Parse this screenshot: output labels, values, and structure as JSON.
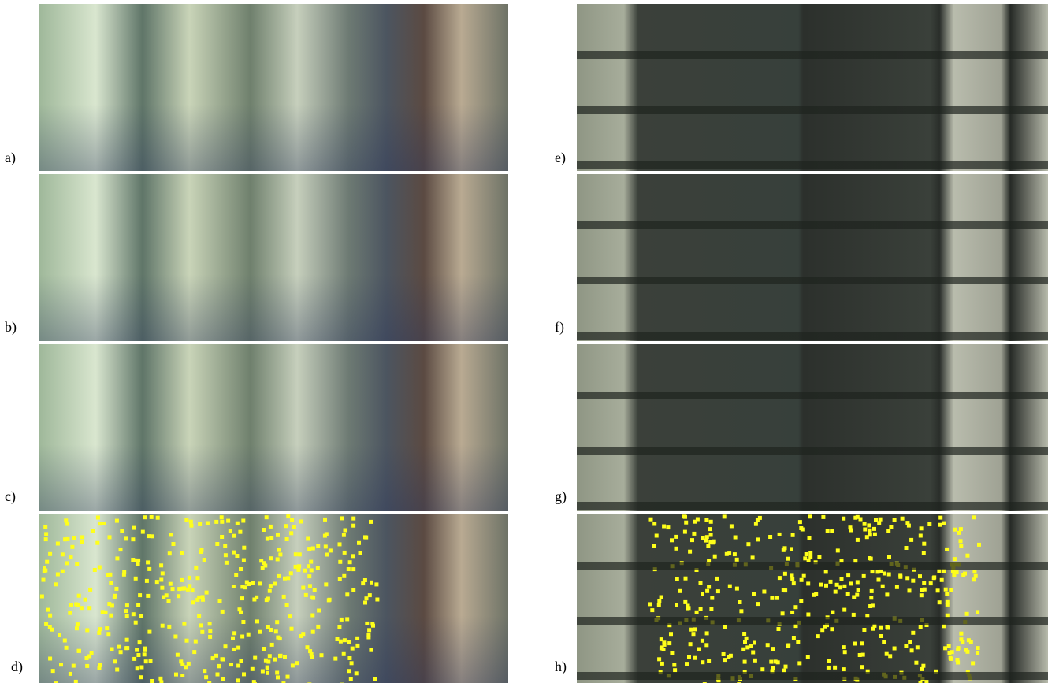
{
  "panels": [
    {
      "label": "a)"
    },
    {
      "label": "b)"
    },
    {
      "label": "c)"
    },
    {
      "label": "d)"
    },
    {
      "label": "e)"
    },
    {
      "label": "f)"
    },
    {
      "label": "g)"
    },
    {
      "label": "h)"
    }
  ]
}
